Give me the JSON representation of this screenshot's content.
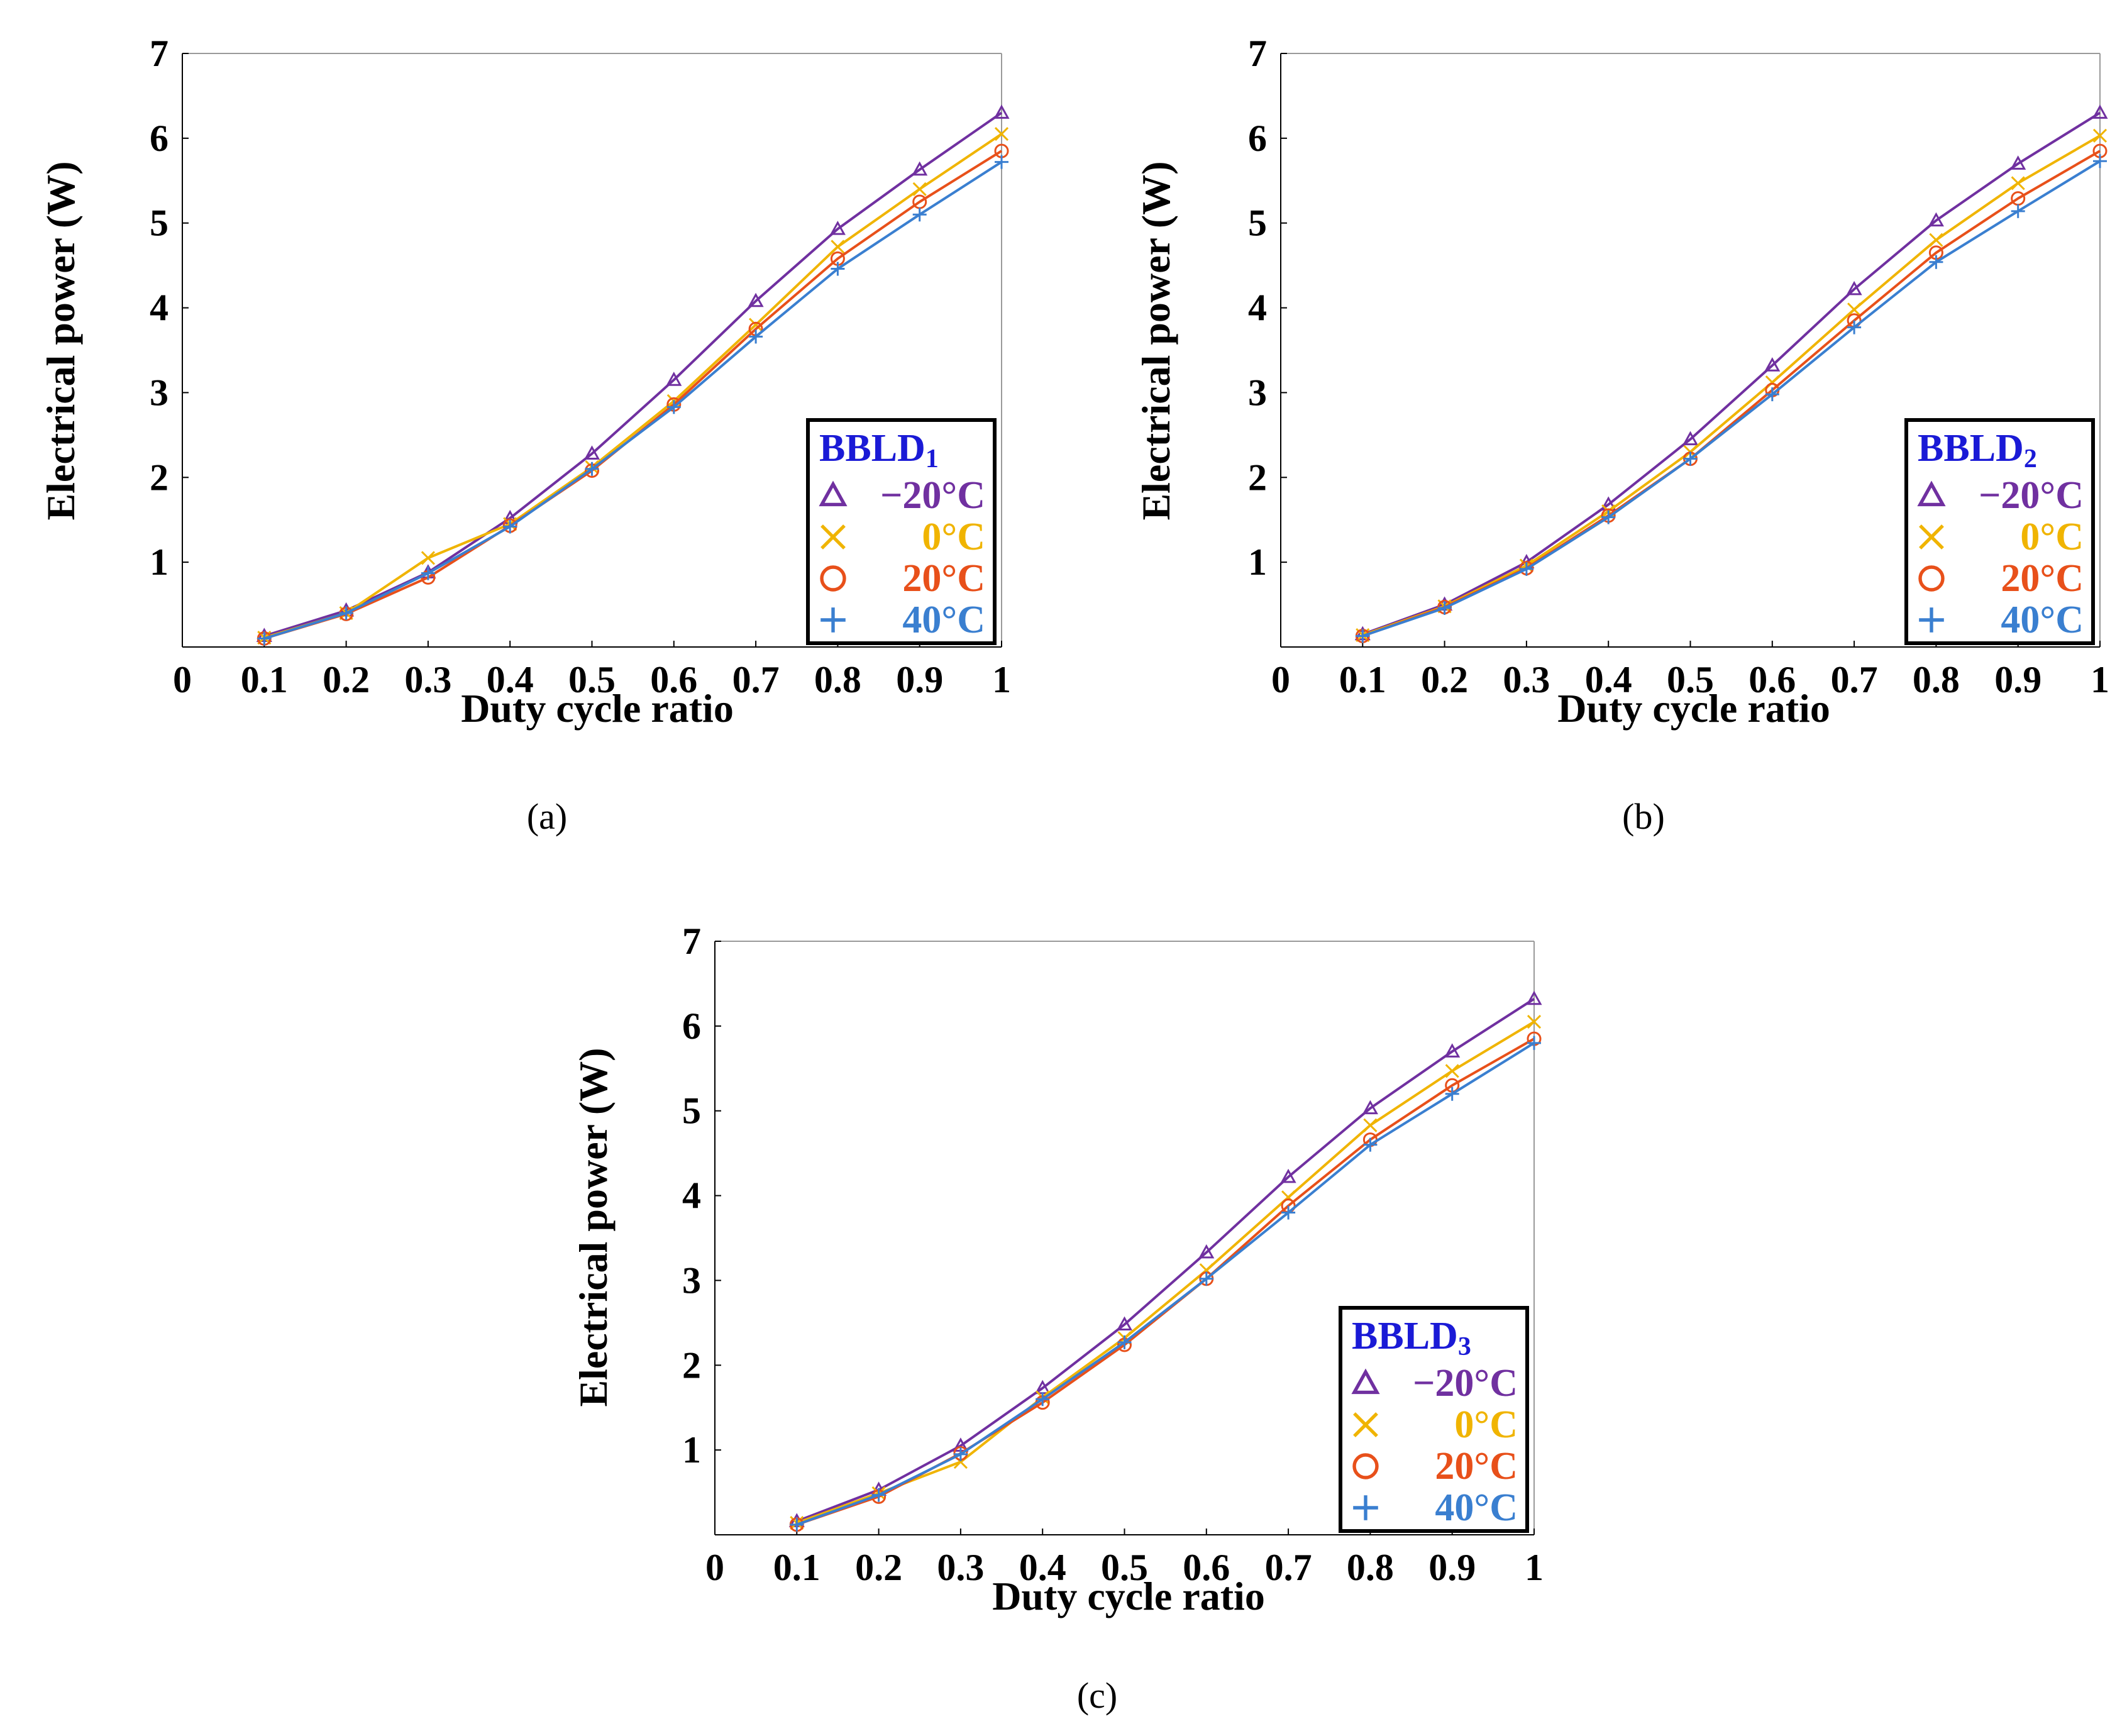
{
  "colors": {
    "axis_label": "#1a1ad6",
    "legend_title": "#1a1ad6",
    "series": [
      "#7030a0",
      "#f0b400",
      "#e8501a",
      "#3a7fd0"
    ]
  },
  "series_meta": [
    {
      "name": "−20°C",
      "marker": "triangle",
      "color": "#7030a0"
    },
    {
      "name": "0°C",
      "marker": "x",
      "color": "#f0b400"
    },
    {
      "name": "20°C",
      "marker": "circle",
      "color": "#e8501a"
    },
    {
      "name": "40°C",
      "marker": "plus",
      "color": "#3a7fd0"
    }
  ],
  "chart_data": [
    {
      "type": "line",
      "caption": "(a)",
      "legend_title_main": "BBLD",
      "legend_title_sub": "1",
      "title": "",
      "xlabel": "Duty cycle ratio",
      "ylabel": "Electrical power (W)",
      "xlim": [
        0,
        1
      ],
      "ylim": [
        0,
        7
      ],
      "xticks": [
        "0",
        "0.1",
        "0.2",
        "0.3",
        "0.4",
        "0.5",
        "0.6",
        "0.7",
        "0.8",
        "0.9",
        "1"
      ],
      "yticks": [
        "1",
        "2",
        "3",
        "4",
        "5",
        "6",
        "7"
      ],
      "x": [
        0.1,
        0.2,
        0.3,
        0.4,
        0.5,
        0.6,
        0.7,
        0.8,
        0.9,
        1.0
      ],
      "series": [
        {
          "name": "−20°C",
          "values": [
            0.13,
            0.43,
            0.88,
            1.52,
            2.28,
            3.15,
            4.08,
            4.93,
            5.63,
            6.3
          ]
        },
        {
          "name": "0°C",
          "values": [
            0.11,
            0.4,
            1.05,
            1.45,
            2.12,
            2.9,
            3.8,
            4.72,
            5.4,
            6.05
          ]
        },
        {
          "name": "20°C",
          "values": [
            0.1,
            0.39,
            0.82,
            1.43,
            2.08,
            2.86,
            3.75,
            4.58,
            5.25,
            5.85
          ]
        },
        {
          "name": "40°C",
          "values": [
            0.1,
            0.4,
            0.87,
            1.42,
            2.1,
            2.83,
            3.66,
            4.46,
            5.1,
            5.72
          ]
        }
      ]
    },
    {
      "type": "line",
      "caption": "(b)",
      "legend_title_main": "BBLD",
      "legend_title_sub": "2",
      "title": "",
      "xlabel": "Duty cycle ratio",
      "ylabel": "Electrical power (W)",
      "xlim": [
        0,
        1
      ],
      "ylim": [
        0,
        7
      ],
      "xticks": [
        "0",
        "0.1",
        "0.2",
        "0.3",
        "0.4",
        "0.5",
        "0.6",
        "0.7",
        "0.8",
        "0.9",
        "1"
      ],
      "yticks": [
        "1",
        "2",
        "3",
        "4",
        "5",
        "6",
        "7"
      ],
      "x": [
        0.1,
        0.2,
        0.3,
        0.4,
        0.5,
        0.6,
        0.7,
        0.8,
        0.9,
        1.0
      ],
      "series": [
        {
          "name": "−20°C",
          "values": [
            0.15,
            0.5,
            1.0,
            1.68,
            2.45,
            3.32,
            4.22,
            5.03,
            5.7,
            6.3
          ]
        },
        {
          "name": "0°C",
          "values": [
            0.14,
            0.48,
            0.96,
            1.6,
            2.3,
            3.12,
            3.98,
            4.8,
            5.47,
            6.03
          ]
        },
        {
          "name": "20°C",
          "values": [
            0.13,
            0.47,
            0.93,
            1.55,
            2.22,
            3.03,
            3.85,
            4.65,
            5.29,
            5.85
          ]
        },
        {
          "name": "40°C",
          "values": [
            0.13,
            0.46,
            0.92,
            1.53,
            2.22,
            2.98,
            3.77,
            4.54,
            5.14,
            5.73
          ]
        }
      ]
    },
    {
      "type": "line",
      "caption": "(c)",
      "legend_title_main": "BBLD",
      "legend_title_sub": "3",
      "title": "",
      "xlabel": "Duty cycle ratio",
      "ylabel": "Electrical power (W)",
      "xlim": [
        0,
        1
      ],
      "ylim": [
        0,
        7
      ],
      "xticks": [
        "0",
        "0.1",
        "0.2",
        "0.3",
        "0.4",
        "0.5",
        "0.6",
        "0.7",
        "0.8",
        "0.9",
        "1"
      ],
      "yticks": [
        "1",
        "2",
        "3",
        "4",
        "5",
        "6",
        "7"
      ],
      "x": [
        0.1,
        0.2,
        0.3,
        0.4,
        0.5,
        0.6,
        0.7,
        0.8,
        0.9,
        1.0
      ],
      "series": [
        {
          "name": "−20°C",
          "values": [
            0.16,
            0.53,
            1.05,
            1.73,
            2.48,
            3.33,
            4.22,
            5.03,
            5.7,
            6.32
          ]
        },
        {
          "name": "0°C",
          "values": [
            0.14,
            0.49,
            0.86,
            1.62,
            2.32,
            3.12,
            3.98,
            4.83,
            5.47,
            6.05
          ]
        },
        {
          "name": "20°C",
          "values": [
            0.12,
            0.45,
            0.96,
            1.56,
            2.24,
            3.02,
            3.88,
            4.66,
            5.3,
            5.85
          ]
        },
        {
          "name": "40°C",
          "values": [
            0.12,
            0.47,
            0.95,
            1.6,
            2.27,
            3.02,
            3.8,
            4.6,
            5.2,
            5.8
          ]
        }
      ]
    }
  ]
}
